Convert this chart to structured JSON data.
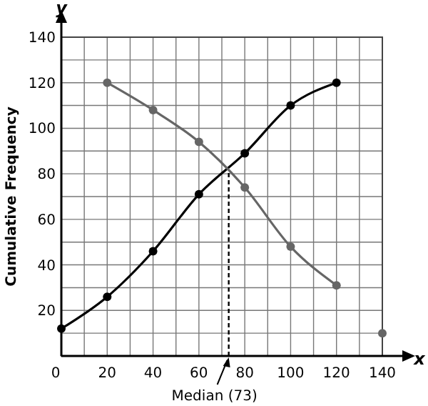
{
  "chart_data": {
    "type": "line",
    "xlabel": "x",
    "ylabel": "Cumulative Frequency",
    "annotations": [
      "y"
    ],
    "xlim": [
      0,
      140
    ],
    "ylim": [
      0,
      140
    ],
    "xticks": [
      {
        "value": 0,
        "label": "0"
      },
      {
        "value": 10,
        "label": null
      },
      20,
      {
        "value": 30,
        "label": null
      },
      40,
      {
        "value": 50,
        "label": null
      },
      60,
      {
        "value": 70,
        "label": null
      },
      80,
      {
        "value": 90,
        "label": null
      },
      100,
      {
        "value": 110,
        "label": null
      },
      120,
      {
        "value": 130,
        "label": null
      },
      140
    ],
    "yticks": [
      {
        "value": 0,
        "label": null
      },
      {
        "value": 10,
        "label": null
      },
      20,
      {
        "value": 30,
        "label": null
      },
      40,
      {
        "value": 50,
        "label": null
      },
      60,
      {
        "value": 70,
        "label": null
      },
      80,
      {
        "value": 90,
        "label": null
      },
      100,
      {
        "value": 110,
        "label": null
      },
      120,
      {
        "value": 130,
        "label": null
      },
      140
    ],
    "grid": true,
    "marker": "circle",
    "series": [
      {
        "color": "#000000",
        "x": [
          0,
          20,
          40,
          60,
          80,
          100,
          120
        ],
        "values": [
          12,
          26,
          46,
          71,
          89,
          110,
          120
        ]
      },
      {
        "color": "#666666",
        "x": [
          20,
          40,
          60,
          80,
          100,
          120
        ],
        "values": [
          120,
          108,
          94,
          74,
          48,
          31
        ]
      },
      {
        "type": "scatter",
        "color": "#666666",
        "x": [
          140
        ],
        "values": [
          10
        ]
      }
    ],
    "ref_lines": [
      {
        "axis": "x",
        "value": 73,
        "label": "Median (73)",
        "line_style": "dashed",
        "color": "#000000"
      }
    ]
  }
}
